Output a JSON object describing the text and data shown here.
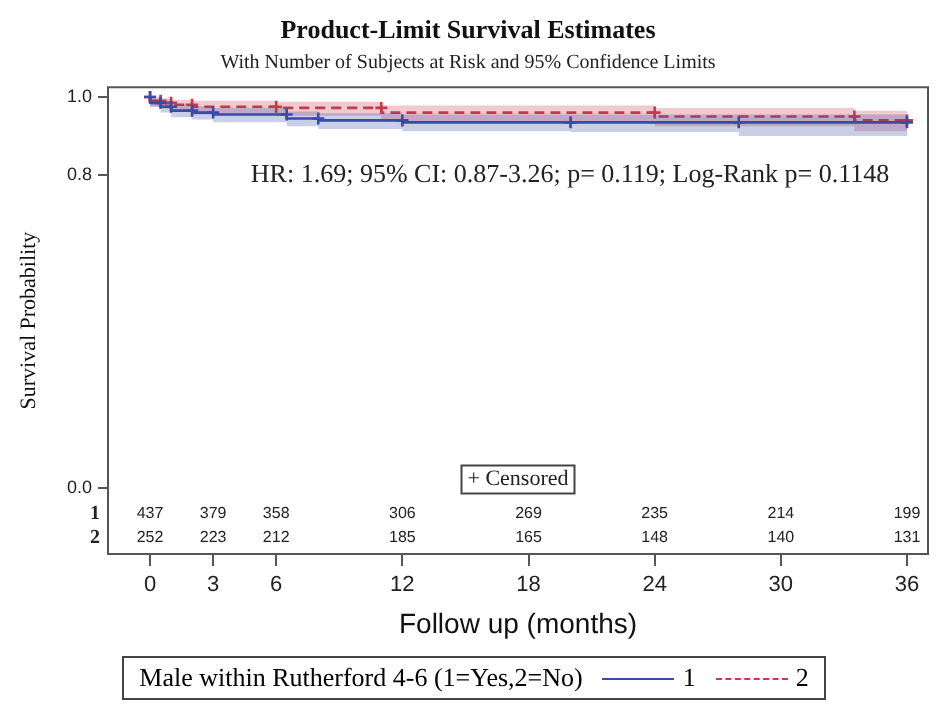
{
  "chart_data": {
    "type": "step",
    "title": "Product-Limit Survival Estimates",
    "subtitle": "With Number of Subjects at Risk and 95% Confidence Limits",
    "xlabel": "Follow up (months)",
    "ylabel": "Survival Probability",
    "legend_title": "Male within Rutherford 4-6 (1=Yes,2=No)",
    "legend": "bottom",
    "marker": "cross",
    "grid": false,
    "xlim": [
      -2,
      37
    ],
    "xticks": [
      0,
      3,
      6,
      12,
      18,
      24,
      30,
      36
    ],
    "ylim": [
      -0.17,
      1.025
    ],
    "yticks": [
      {
        "value": 0,
        "label": "0.0"
      },
      {
        "value": 0.8,
        "label": "0.8"
      },
      {
        "value": 1,
        "label": "1.0"
      }
    ],
    "series": [
      {
        "name": "1",
        "color": "#3a4aa8",
        "line_style": "solid",
        "x": [
          0,
          0.5,
          1,
          2,
          3,
          6.5,
          8,
          12,
          20,
          28,
          36
        ],
        "values": [
          1,
          0.985,
          0.975,
          0.965,
          0.96,
          0.955,
          0.945,
          0.94,
          0.935,
          0.935,
          0.935
        ],
        "lower": [
          1,
          0.975,
          0.96,
          0.948,
          0.942,
          0.935,
          0.925,
          0.918,
          0.912,
          0.91,
          0.9
        ],
        "upper": [
          1,
          0.995,
          0.988,
          0.98,
          0.976,
          0.972,
          0.963,
          0.958,
          0.955,
          0.955,
          0.955
        ]
      },
      {
        "name": "2",
        "color": "#c83a4a",
        "line_style": "dashed",
        "x": [
          0,
          0.5,
          1,
          2,
          6,
          11,
          24,
          33.5,
          36
        ],
        "values": [
          1,
          0.99,
          0.985,
          0.98,
          0.975,
          0.972,
          0.96,
          0.95,
          0.94
        ],
        "lower": [
          1,
          0.975,
          0.97,
          0.962,
          0.955,
          0.952,
          0.938,
          0.925,
          0.912
        ],
        "upper": [
          1,
          1,
          0.997,
          0.993,
          0.99,
          0.988,
          0.978,
          0.972,
          0.965
        ]
      }
    ],
    "annotations": [
      "HR: 1.69; 95% CI: 0.87-3.26; p= 0.119; Log-Rank p= 0.1148",
      "+ Censored",
      "1",
      "2",
      "437",
      "379",
      "358",
      "306",
      "269",
      "235",
      "214",
      "199",
      "252",
      "223",
      "212",
      "185",
      "165",
      "148",
      "140",
      "131"
    ]
  }
}
